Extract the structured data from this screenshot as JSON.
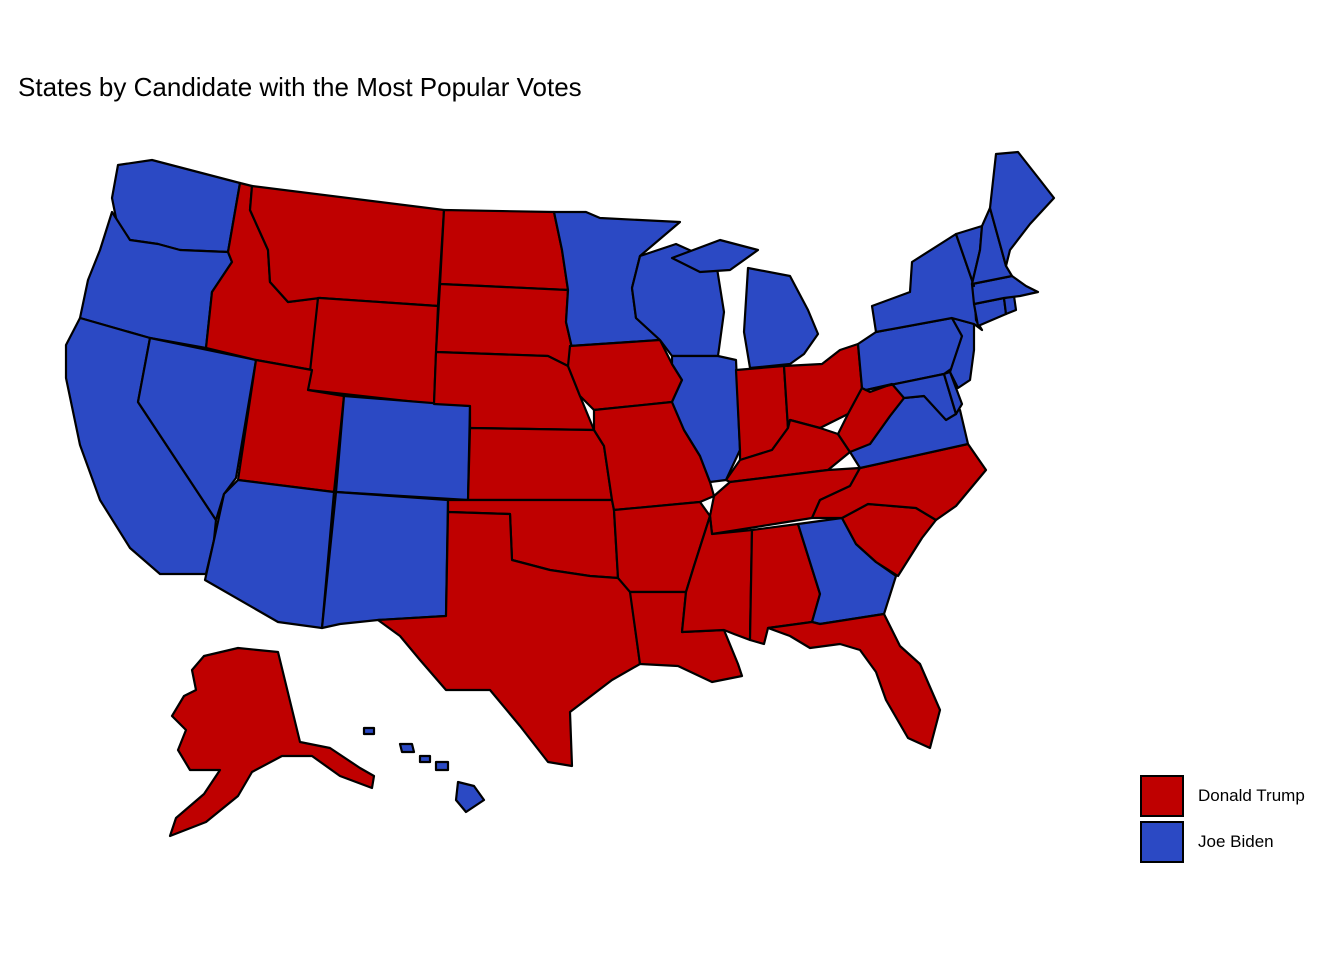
{
  "title": "States by Candidate with the Most Popular Votes",
  "colors": {
    "trump": "#BF0000",
    "biden": "#2B49C4",
    "border": "#000000"
  },
  "legend": [
    {
      "key": "trump",
      "label": "Donald Trump"
    },
    {
      "key": "biden",
      "label": "Joe Biden"
    }
  ],
  "states": {
    "WA": "biden",
    "OR": "biden",
    "CA": "biden",
    "NV": "biden",
    "ID": "trump",
    "MT": "trump",
    "WY": "trump",
    "UT": "trump",
    "AZ": "biden",
    "CO": "biden",
    "NM": "biden",
    "ND": "trump",
    "SD": "trump",
    "NE": "trump",
    "KS": "trump",
    "OK": "trump",
    "TX": "trump",
    "MN": "biden",
    "IA": "trump",
    "MO": "trump",
    "AR": "trump",
    "LA": "trump",
    "WI": "biden",
    "IL": "biden",
    "MI": "biden",
    "IN": "trump",
    "OH": "trump",
    "KY": "trump",
    "TN": "trump",
    "MS": "trump",
    "AL": "trump",
    "GA": "biden",
    "FL": "trump",
    "SC": "trump",
    "NC": "trump",
    "VA": "biden",
    "WV": "trump",
    "PA": "biden",
    "NY": "biden",
    "VT": "biden",
    "NH": "biden",
    "ME": "biden",
    "MA": "biden",
    "RI": "biden",
    "CT": "biden",
    "NJ": "biden",
    "DE": "biden",
    "MD": "biden",
    "AK": "trump",
    "HI": "biden"
  }
}
